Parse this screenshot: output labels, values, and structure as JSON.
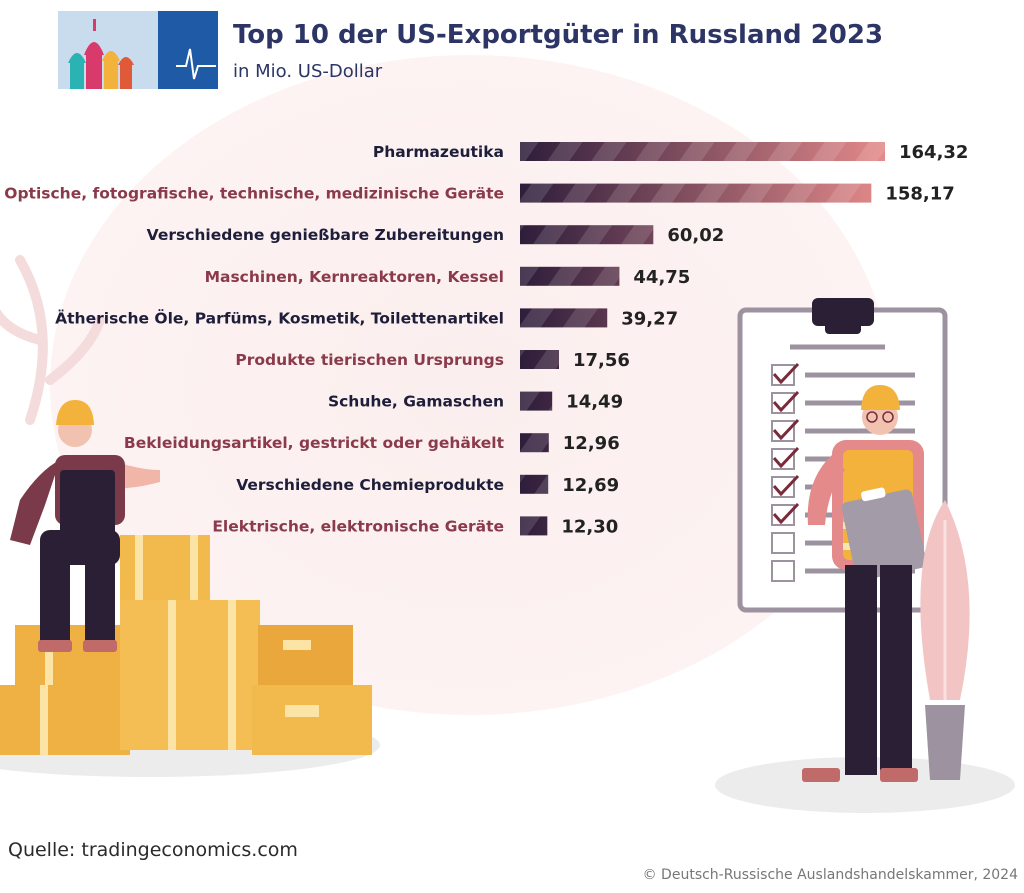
{
  "header": {
    "title": "Top 10 der US-Exportgüter in Russland 2023",
    "subtitle": "in Mio. US-Dollar"
  },
  "chart_data": {
    "type": "bar",
    "orientation": "horizontal",
    "title": "Top 10 der US-Exportgüter in Russland 2023",
    "unit": "Mio. US-Dollar",
    "categories": [
      "Pharmazeutika",
      "Optische, fotografische, technische, medizinische Geräte",
      "Verschiedene genießbare Zubereitungen",
      "Maschinen, Kernreaktoren, Kessel",
      "Ätherische Öle, Parfüms, Kosmetik, Toilettenartikel",
      "Produkte tierischen Ursprungs",
      "Schuhe, Gamaschen",
      "Bekleidungsartikel, gestrickt oder gehäkelt",
      "Verschiedene Chemieprodukte",
      "Elektrische, elektronische Geräte"
    ],
    "values": [
      164.32,
      158.17,
      60.02,
      44.75,
      39.27,
      17.56,
      14.49,
      12.96,
      12.69,
      12.3
    ],
    "value_labels": [
      "164,32",
      "158,17",
      "60,02",
      "44,75",
      "39,27",
      "17,56",
      "14,49",
      "12,96",
      "12,69",
      "12,30"
    ],
    "xlim": [
      0,
      164.32
    ],
    "grid": false,
    "legend": "none",
    "colors": {
      "bar_start": "#2e1d3b",
      "bar_end": "#e48a8a",
      "label_dark": "#1e1e3a",
      "label_accent": "#8a3a4a"
    }
  },
  "footer": {
    "source": "Quelle: tradingeconomics.com",
    "copyright": "© Deutsch-Russische Auslandshandelskammer, 2024"
  }
}
